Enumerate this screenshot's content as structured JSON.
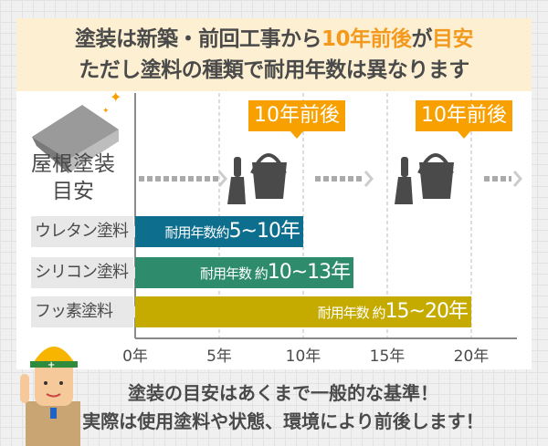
{
  "header": {
    "line1_a": "塗装は新築・前回工事から",
    "line1_b": "10年前後",
    "line1_c": "が",
    "line1_d": "目安",
    "line2": "ただし塗料の種類で耐用年数は異なります"
  },
  "roof": {
    "label_line1": "屋根塗装",
    "label_line2": "目安",
    "callouts": [
      "10年前後",
      "10年前後"
    ]
  },
  "colors": {
    "urethane": "#0e6e8e",
    "silicone": "#2e8c6c",
    "fluorine": "#c5ab00",
    "callout": "#f7a000",
    "highlight": "#f39a1e"
  },
  "chart_data": {
    "type": "bar",
    "orientation": "horizontal-range",
    "categories": [
      "ウレタン塗料",
      "シリコン塗料",
      "フッ素塗料"
    ],
    "series": [
      {
        "values": [
          [
            5,
            10
          ],
          [
            10,
            13
          ],
          [
            15,
            20
          ]
        ]
      }
    ],
    "data_labels": [
      {
        "prefix": "耐用年数約",
        "range": "5~10年"
      },
      {
        "prefix": "耐用年数 約",
        "range": "10~13年"
      },
      {
        "prefix": "耐用年数 約",
        "range": "15~20年"
      }
    ],
    "xticks": [
      "0年",
      "5年",
      "10年",
      "15年",
      "20年"
    ],
    "xlim": [
      0,
      20
    ],
    "grid": "vertical dashed"
  },
  "footer": {
    "line1": "塗装の目安はあくまで一般的な基準！",
    "line2": "実際は使用塗料や状態、環境により前後します！"
  }
}
